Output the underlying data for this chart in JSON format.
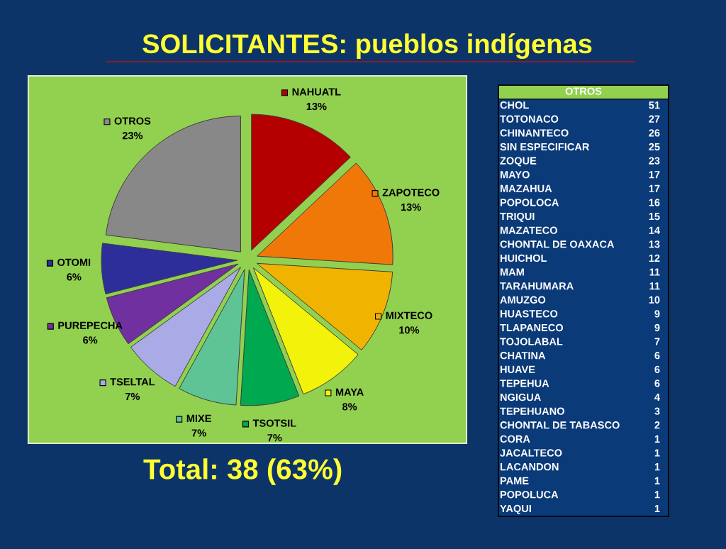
{
  "chart_data": [
    {
      "type": "pie",
      "title": "SOLICITANTES: pueblos indígenas",
      "categories": [
        "NAHUATL",
        "ZAPOTECO",
        "MIXTECO",
        "MAYA",
        "TSOTSIL",
        "MIXE",
        "TSELTAL",
        "PUREPECHA",
        "OTOMI",
        "OTROS"
      ],
      "values": [
        13,
        13,
        10,
        8,
        7,
        7,
        7,
        6,
        6,
        23
      ],
      "value_labels": [
        "13%",
        "13%",
        "10%",
        "8%",
        "7%",
        "7%",
        "7%",
        "6%",
        "6%",
        "23%"
      ],
      "colors": [
        "#b40000",
        "#f07808",
        "#f0b400",
        "#f2f20a",
        "#00a850",
        "#5ec496",
        "#aaaae6",
        "#7030a0",
        "#2e2e9a",
        "#888888"
      ],
      "legend": true,
      "annotations": [
        "Total: 38 (63%)"
      ]
    },
    {
      "type": "other",
      "title": "OTROS",
      "categories": [
        "CHOL",
        "TOTONACO",
        "CHINANTECO",
        "SIN ESPECIFICAR",
        "ZOQUE",
        "MAYO",
        "MAZAHUA",
        "POPOLOCA",
        "TRIQUI",
        "MAZATECO",
        "CHONTAL DE OAXACA",
        "HUICHOL",
        "MAM",
        "TARAHUMARA",
        "AMUZGO",
        "HUASTECO",
        "TLAPANECO",
        "TOJOLABAL",
        "CHATINA",
        "HUAVE",
        "TEPEHUA",
        "NGIGUA",
        "TEPEHUANO",
        "CHONTAL DE TABASCO",
        "CORA",
        "JACALTECO",
        "LACANDON",
        "PAME",
        "POPOLUCA",
        "YAQUI"
      ],
      "values": [
        51,
        27,
        26,
        25,
        23,
        17,
        17,
        16,
        15,
        14,
        13,
        12,
        11,
        11,
        10,
        9,
        9,
        7,
        6,
        6,
        6,
        4,
        3,
        2,
        1,
        1,
        1,
        1,
        1,
        1
      ],
      "data_labels": true
    }
  ]
}
